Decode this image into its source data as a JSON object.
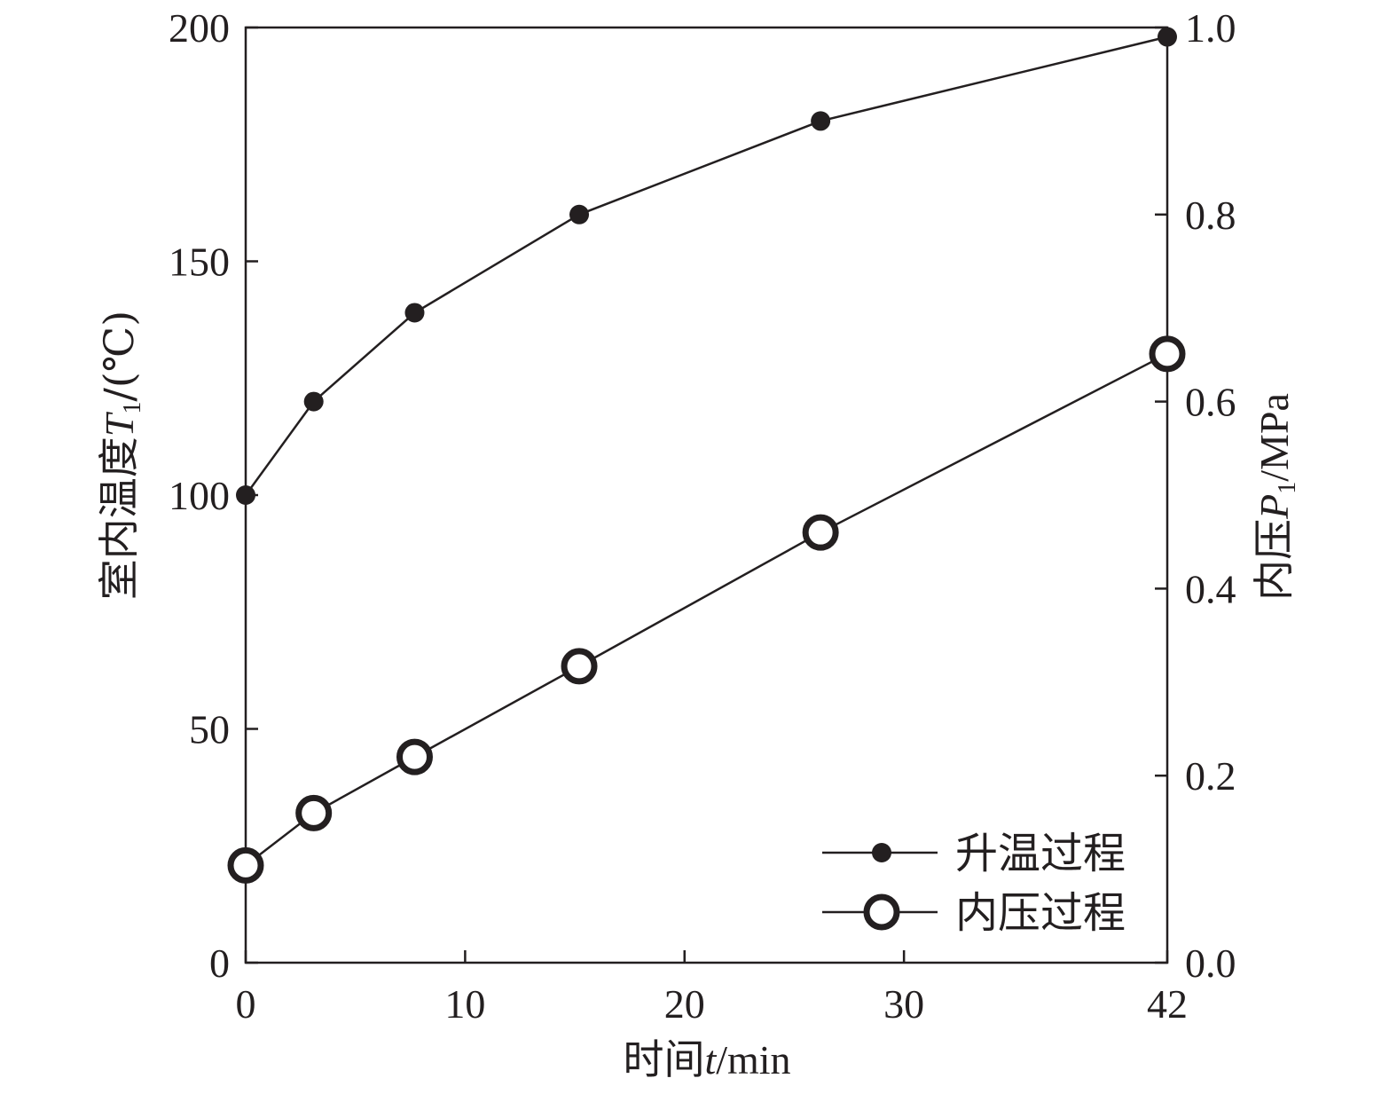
{
  "chart_data": {
    "type": "line",
    "xlabel": {
      "pre": "时间",
      "var": "t",
      "post": "/min"
    },
    "ylabel_left": {
      "pre": "室内温度",
      "var": "T",
      "sub": "1",
      "post": "/(℃)"
    },
    "ylabel_right": {
      "pre": "内压",
      "var": "P",
      "sub": "1",
      "post": "/MPa"
    },
    "xlim": [
      0,
      42
    ],
    "ylim_left": [
      0,
      200
    ],
    "ylim_right": [
      0,
      1.0
    ],
    "x_ticks": [
      0,
      10,
      20,
      30,
      42
    ],
    "y_left_ticks": [
      0,
      50,
      100,
      150,
      200
    ],
    "y_right_ticks": [
      "0.0",
      "0.2",
      "0.4",
      "0.6",
      "0.8",
      "1.0"
    ],
    "legend_position": "bottom-right",
    "series": [
      {
        "name": "升温过程",
        "axis": "left",
        "marker": "filled-circle",
        "color": "#231f20",
        "x": [
          0,
          3.1,
          7.7,
          15.2,
          26.2,
          42
        ],
        "y": [
          100,
          120,
          139,
          160,
          180,
          198
        ]
      },
      {
        "name": "内压过程",
        "axis": "right",
        "marker": "open-circle",
        "color": "#231f20",
        "x": [
          0,
          3.1,
          7.7,
          15.2,
          26.2,
          42
        ],
        "y": [
          0.104,
          0.16,
          0.22,
          0.317,
          0.46,
          0.651
        ]
      }
    ]
  }
}
